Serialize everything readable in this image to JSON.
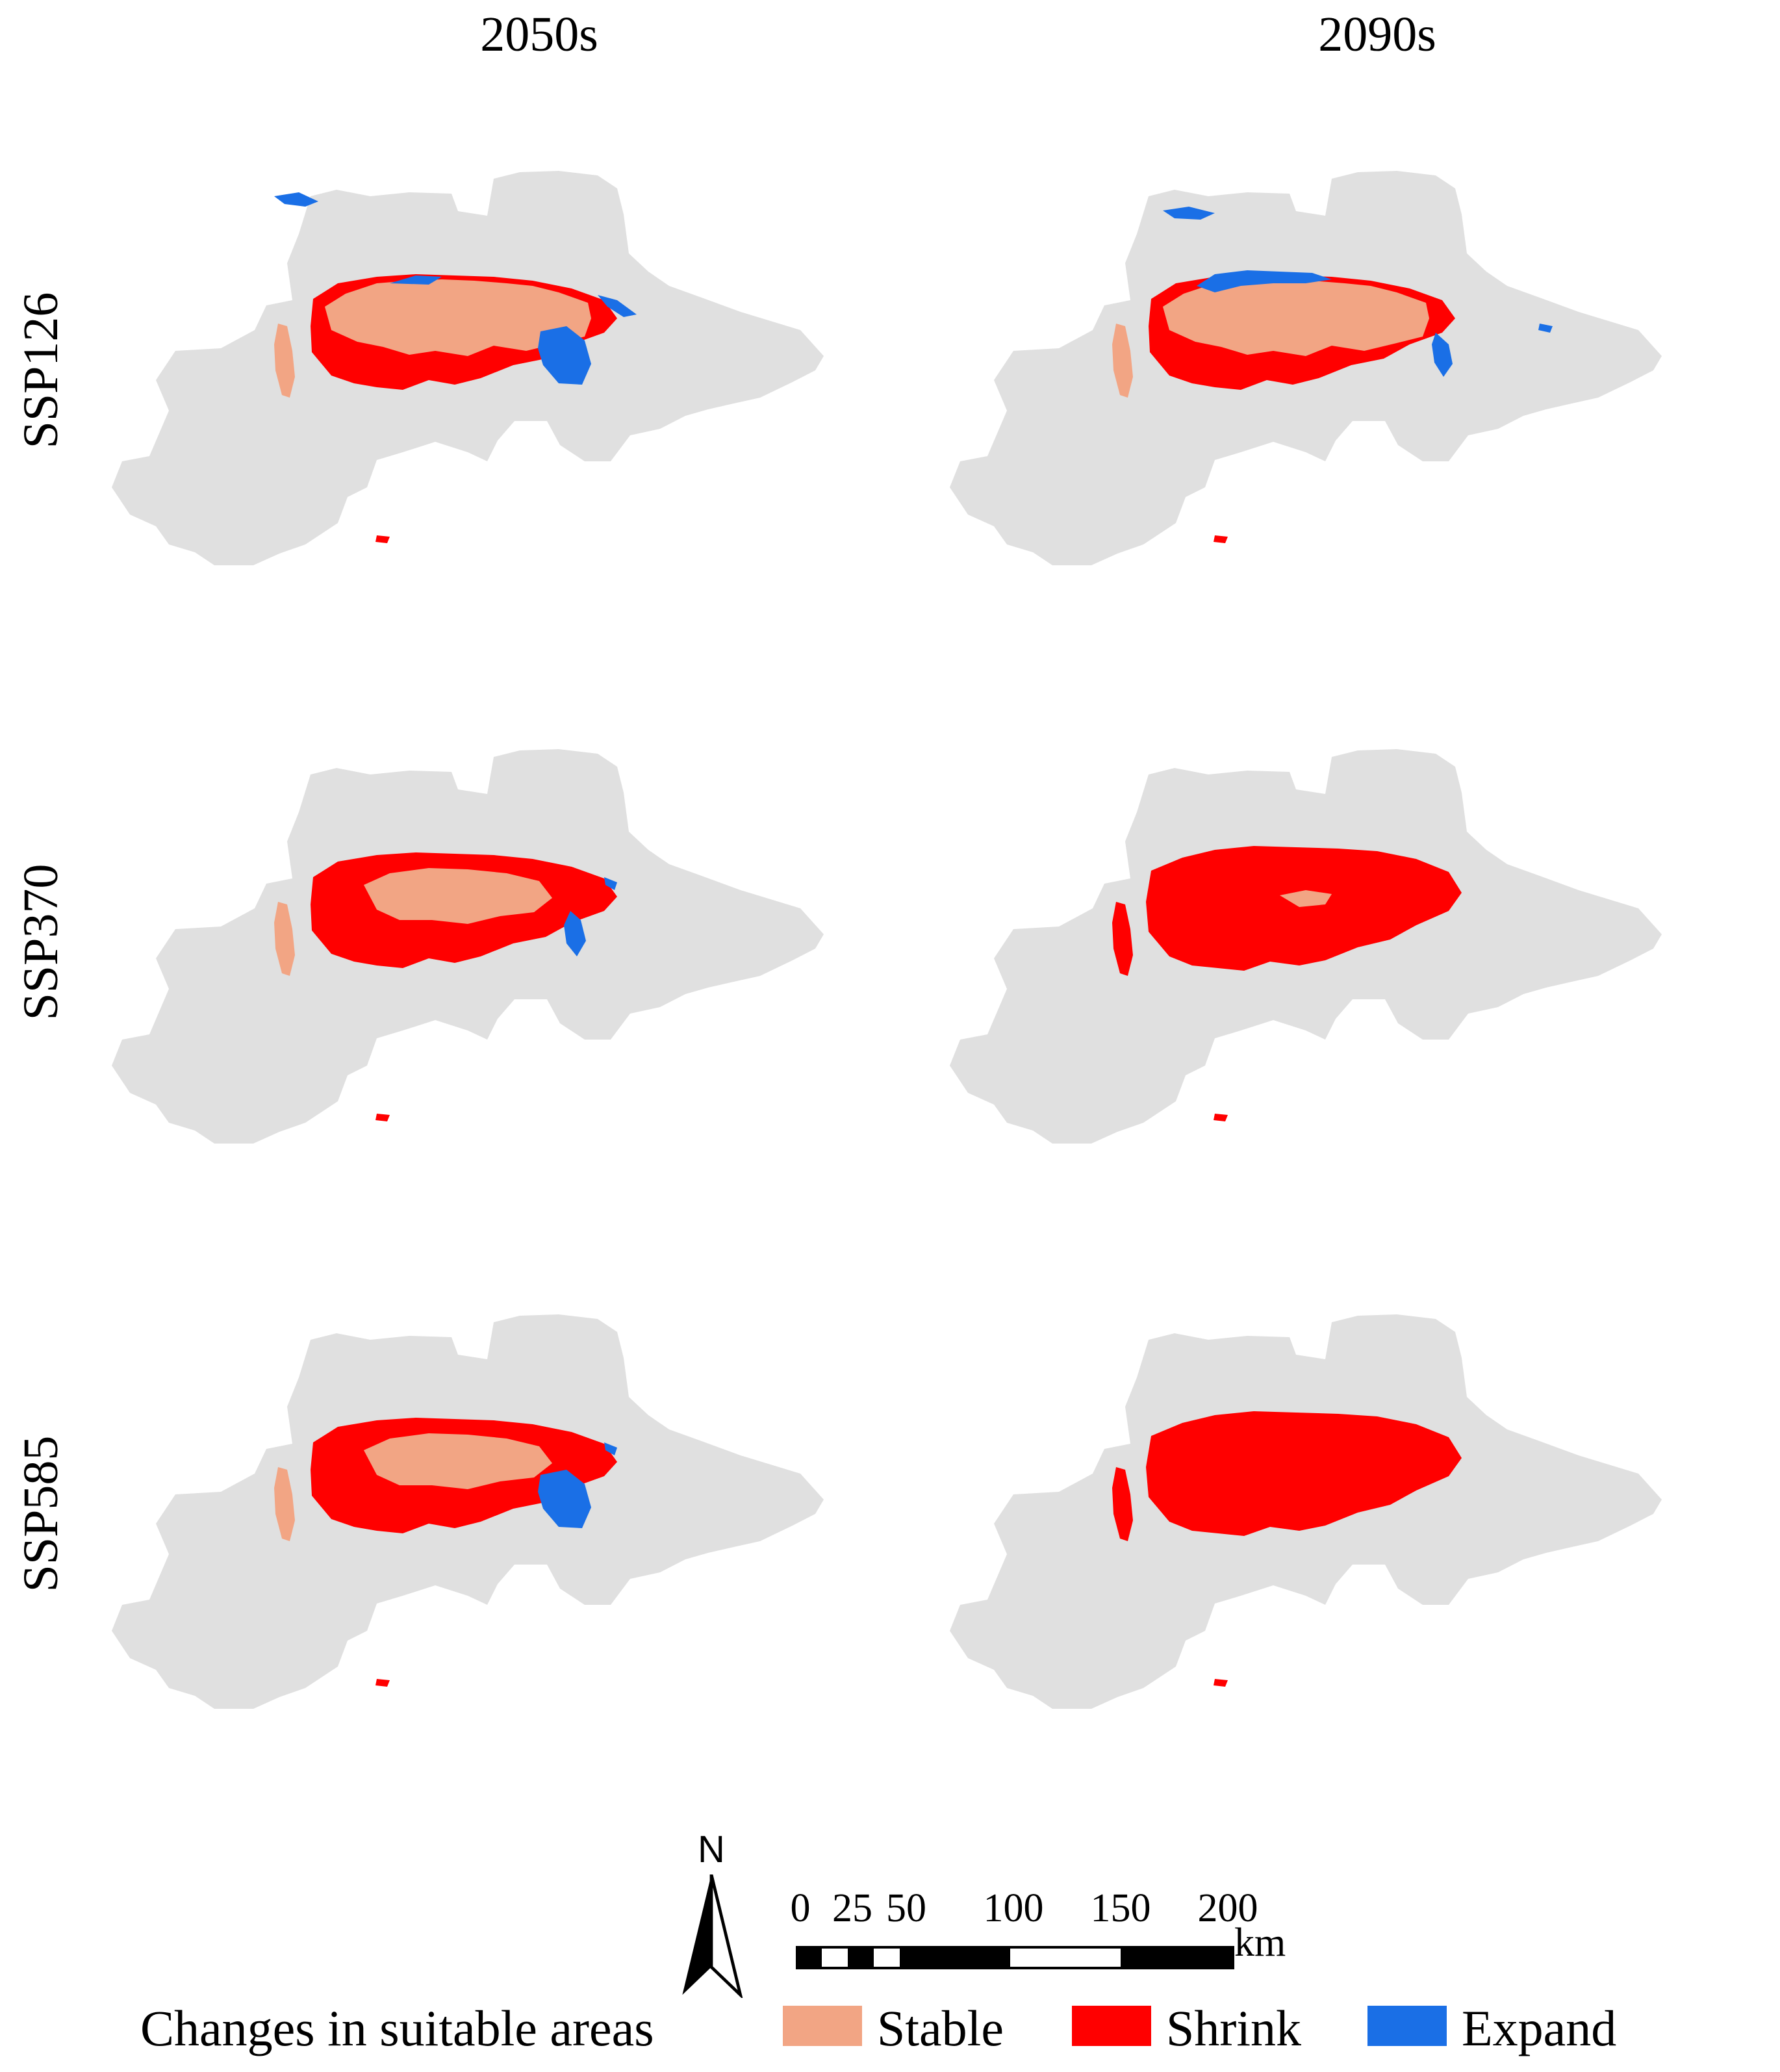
{
  "columns": [
    "2050s",
    "2090s"
  ],
  "rows": [
    "SSP126",
    "SSP370",
    "SSP585"
  ],
  "panels": [
    {
      "period": "2050s",
      "scenario": "SSP126",
      "stable": "large",
      "shrink": "moderate",
      "expand": "large"
    },
    {
      "period": "2090s",
      "scenario": "SSP126",
      "stable": "large",
      "shrink": "moderate",
      "expand": "moderate"
    },
    {
      "period": "2050s",
      "scenario": "SSP370",
      "stable": "moderate",
      "shrink": "large",
      "expand": "moderate"
    },
    {
      "period": "2090s",
      "scenario": "SSP370",
      "stable": "minimal",
      "shrink": "very large",
      "expand": "minimal"
    },
    {
      "period": "2050s",
      "scenario": "SSP585",
      "stable": "moderate",
      "shrink": "large",
      "expand": "moderate"
    },
    {
      "period": "2090s",
      "scenario": "SSP585",
      "stable": "minimal",
      "shrink": "very large",
      "expand": "minimal"
    }
  ],
  "colors": {
    "region": "#e0e0e0",
    "stable": "#f2a584",
    "shrink": "#ff0000",
    "expand": "#1a6fe6"
  },
  "legend": {
    "title": "Changes in suitable areas",
    "items": [
      {
        "label": "Stable",
        "color": "#f2a584"
      },
      {
        "label": "Shrink",
        "color": "#ff0000"
      },
      {
        "label": "Expand",
        "color": "#1a6fe6"
      }
    ]
  },
  "north_arrow": {
    "label": "N"
  },
  "scale_bar": {
    "labels": [
      "0",
      "25",
      "50",
      "100",
      "150",
      "200"
    ],
    "unit": "km"
  }
}
